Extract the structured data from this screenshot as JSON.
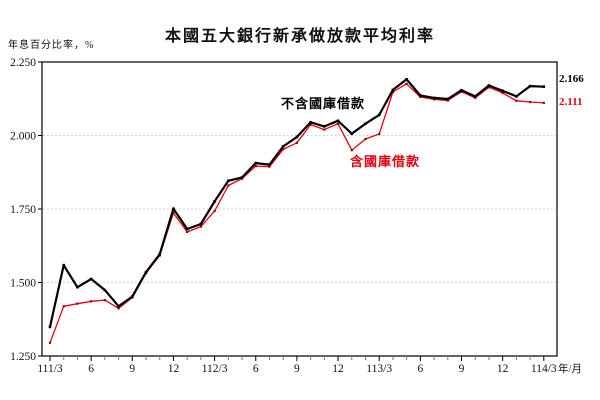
{
  "title": "本國五大銀行新承做放款平均利率",
  "y_axis_unit": "年息百分比率，%",
  "x_axis_unit": "年/月",
  "chart_data": {
    "type": "line",
    "x": [
      "111/3",
      "111/4",
      "111/5",
      "111/6",
      "111/7",
      "111/8",
      "111/9",
      "111/10",
      "111/11",
      "111/12",
      "112/1",
      "112/2",
      "112/3",
      "112/4",
      "112/5",
      "112/6",
      "112/7",
      "112/8",
      "112/9",
      "112/10",
      "112/11",
      "112/12",
      "113/1",
      "113/2",
      "113/3",
      "113/4",
      "113/5",
      "113/6",
      "113/7",
      "113/8",
      "113/9",
      "113/10",
      "113/11",
      "113/12",
      "114/1",
      "114/2",
      "114/3"
    ],
    "x_tick_labels": [
      "111/3",
      "6",
      "9",
      "12",
      "112/3",
      "6",
      "9",
      "12",
      "113/3",
      "6",
      "9",
      "12",
      "114/3"
    ],
    "y_ticks": [
      "2.250",
      "2.000",
      "1.750",
      "1.500",
      "1.250"
    ],
    "ylim": [
      1.25,
      2.25
    ],
    "grid": "dotted horizontal lines at 1.500, 1.750, 2.000",
    "legend_position": "inline text annotations",
    "series": [
      {
        "name": "不含國庫借款",
        "color": "#000000",
        "marker_color": "#000000",
        "end_label": "2.166",
        "values": [
          1.349,
          1.559,
          1.484,
          1.512,
          1.474,
          1.419,
          1.452,
          1.535,
          1.596,
          1.751,
          1.682,
          1.699,
          1.776,
          1.846,
          1.857,
          1.906,
          1.901,
          1.963,
          1.995,
          2.045,
          2.031,
          2.05,
          2.006,
          2.04,
          2.07,
          2.155,
          2.191,
          2.136,
          2.128,
          2.124,
          2.154,
          2.133,
          2.17,
          2.152,
          2.133,
          2.168,
          2.166
        ]
      },
      {
        "name": "含國庫借款",
        "color": "#e60012",
        "marker_color": "#990000",
        "end_label": "2.111",
        "values": [
          1.295,
          1.419,
          1.428,
          1.436,
          1.44,
          1.412,
          1.449,
          1.532,
          1.592,
          1.736,
          1.672,
          1.69,
          1.743,
          1.83,
          1.853,
          1.896,
          1.894,
          1.953,
          1.975,
          2.037,
          2.02,
          2.04,
          1.95,
          1.988,
          2.005,
          2.148,
          2.176,
          2.131,
          2.123,
          2.119,
          2.149,
          2.128,
          2.164,
          2.145,
          2.118,
          2.114,
          2.111
        ]
      }
    ]
  }
}
